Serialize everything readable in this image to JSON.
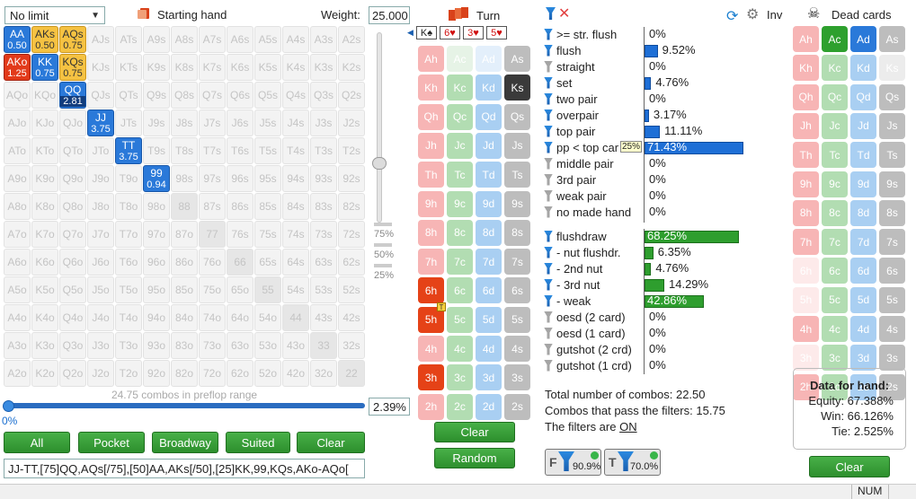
{
  "top": {
    "limit": "No limit",
    "starting_hand": "Starting hand",
    "weight_label": "Weight:",
    "weight_value": "25.000"
  },
  "matrix": [
    [
      [
        "AA",
        "0.50",
        "b"
      ],
      [
        "AKs",
        "0.50",
        "y"
      ],
      [
        "AQs",
        "0.75",
        "y"
      ],
      [
        "AJs",
        "",
        ""
      ],
      [
        "ATs",
        "",
        ""
      ],
      [
        "A9s",
        "",
        ""
      ],
      [
        "A8s",
        "",
        ""
      ],
      [
        "A7s",
        "",
        ""
      ],
      [
        "A6s",
        "",
        ""
      ],
      [
        "A5s",
        "",
        ""
      ],
      [
        "A4s",
        "",
        ""
      ],
      [
        "A3s",
        "",
        ""
      ],
      [
        "A2s",
        "",
        ""
      ]
    ],
    [
      [
        "AKo",
        "1.25",
        "r"
      ],
      [
        "KK",
        "0.75",
        "b"
      ],
      [
        "KQs",
        "0.75",
        "y"
      ],
      [
        "KJs",
        "",
        ""
      ],
      [
        "KTs",
        "",
        ""
      ],
      [
        "K9s",
        "",
        ""
      ],
      [
        "K8s",
        "",
        ""
      ],
      [
        "K7s",
        "",
        ""
      ],
      [
        "K6s",
        "",
        ""
      ],
      [
        "K5s",
        "",
        ""
      ],
      [
        "K4s",
        "",
        ""
      ],
      [
        "K3s",
        "",
        ""
      ],
      [
        "K2s",
        "",
        ""
      ]
    ],
    [
      [
        "AQo",
        "",
        ""
      ],
      [
        "KQo",
        "",
        ""
      ],
      [
        "QQ",
        "2.81",
        "b"
      ],
      [
        "QJs",
        "",
        ""
      ],
      [
        "QTs",
        "",
        ""
      ],
      [
        "Q9s",
        "",
        ""
      ],
      [
        "Q8s",
        "",
        ""
      ],
      [
        "Q7s",
        "",
        ""
      ],
      [
        "Q6s",
        "",
        ""
      ],
      [
        "Q5s",
        "",
        ""
      ],
      [
        "Q4s",
        "",
        ""
      ],
      [
        "Q3s",
        "",
        ""
      ],
      [
        "Q2s",
        "",
        ""
      ]
    ],
    [
      [
        "AJo",
        "",
        ""
      ],
      [
        "KJo",
        "",
        ""
      ],
      [
        "QJo",
        "",
        ""
      ],
      [
        "JJ",
        "3.75",
        "b"
      ],
      [
        "JTs",
        "",
        ""
      ],
      [
        "J9s",
        "",
        ""
      ],
      [
        "J8s",
        "",
        ""
      ],
      [
        "J7s",
        "",
        ""
      ],
      [
        "J6s",
        "",
        ""
      ],
      [
        "J5s",
        "",
        ""
      ],
      [
        "J4s",
        "",
        ""
      ],
      [
        "J3s",
        "",
        ""
      ],
      [
        "J2s",
        "",
        ""
      ]
    ],
    [
      [
        "ATo",
        "",
        ""
      ],
      [
        "KTo",
        "",
        ""
      ],
      [
        "QTo",
        "",
        ""
      ],
      [
        "JTo",
        "",
        ""
      ],
      [
        "TT",
        "3.75",
        "b"
      ],
      [
        "T9s",
        "",
        ""
      ],
      [
        "T8s",
        "",
        ""
      ],
      [
        "T7s",
        "",
        ""
      ],
      [
        "T6s",
        "",
        ""
      ],
      [
        "T5s",
        "",
        ""
      ],
      [
        "T4s",
        "",
        ""
      ],
      [
        "T3s",
        "",
        ""
      ],
      [
        "T2s",
        "",
        ""
      ]
    ],
    [
      [
        "A9o",
        "",
        ""
      ],
      [
        "K9o",
        "",
        ""
      ],
      [
        "Q9o",
        "",
        ""
      ],
      [
        "J9o",
        "",
        ""
      ],
      [
        "T9o",
        "",
        ""
      ],
      [
        "99",
        "0.94",
        "b"
      ],
      [
        "98s",
        "",
        ""
      ],
      [
        "97s",
        "",
        ""
      ],
      [
        "96s",
        "",
        ""
      ],
      [
        "95s",
        "",
        ""
      ],
      [
        "94s",
        "",
        ""
      ],
      [
        "93s",
        "",
        ""
      ],
      [
        "92s",
        "",
        ""
      ]
    ],
    [
      [
        "A8o",
        "",
        ""
      ],
      [
        "K8o",
        "",
        ""
      ],
      [
        "Q8o",
        "",
        ""
      ],
      [
        "J8o",
        "",
        ""
      ],
      [
        "T8o",
        "",
        ""
      ],
      [
        "98o",
        "",
        ""
      ],
      [
        "88",
        "",
        "p"
      ],
      [
        "87s",
        "",
        ""
      ],
      [
        "86s",
        "",
        ""
      ],
      [
        "85s",
        "",
        ""
      ],
      [
        "84s",
        "",
        ""
      ],
      [
        "83s",
        "",
        ""
      ],
      [
        "82s",
        "",
        ""
      ]
    ],
    [
      [
        "A7o",
        "",
        ""
      ],
      [
        "K7o",
        "",
        ""
      ],
      [
        "Q7o",
        "",
        ""
      ],
      [
        "J7o",
        "",
        ""
      ],
      [
        "T7o",
        "",
        ""
      ],
      [
        "97o",
        "",
        ""
      ],
      [
        "87o",
        "",
        ""
      ],
      [
        "77",
        "",
        "p"
      ],
      [
        "76s",
        "",
        ""
      ],
      [
        "75s",
        "",
        ""
      ],
      [
        "74s",
        "",
        ""
      ],
      [
        "73s",
        "",
        ""
      ],
      [
        "72s",
        "",
        ""
      ]
    ],
    [
      [
        "A6o",
        "",
        ""
      ],
      [
        "K6o",
        "",
        ""
      ],
      [
        "Q6o",
        "",
        ""
      ],
      [
        "J6o",
        "",
        ""
      ],
      [
        "T6o",
        "",
        ""
      ],
      [
        "96o",
        "",
        ""
      ],
      [
        "86o",
        "",
        ""
      ],
      [
        "76o",
        "",
        ""
      ],
      [
        "66",
        "",
        "p"
      ],
      [
        "65s",
        "",
        ""
      ],
      [
        "64s",
        "",
        ""
      ],
      [
        "63s",
        "",
        ""
      ],
      [
        "62s",
        "",
        ""
      ]
    ],
    [
      [
        "A5o",
        "",
        ""
      ],
      [
        "K5o",
        "",
        ""
      ],
      [
        "Q5o",
        "",
        ""
      ],
      [
        "J5o",
        "",
        ""
      ],
      [
        "T5o",
        "",
        ""
      ],
      [
        "95o",
        "",
        ""
      ],
      [
        "85o",
        "",
        ""
      ],
      [
        "75o",
        "",
        ""
      ],
      [
        "65o",
        "",
        ""
      ],
      [
        "55",
        "",
        "p"
      ],
      [
        "54s",
        "",
        ""
      ],
      [
        "53s",
        "",
        ""
      ],
      [
        "52s",
        "",
        ""
      ]
    ],
    [
      [
        "A4o",
        "",
        ""
      ],
      [
        "K4o",
        "",
        ""
      ],
      [
        "Q4o",
        "",
        ""
      ],
      [
        "J4o",
        "",
        ""
      ],
      [
        "T4o",
        "",
        ""
      ],
      [
        "94o",
        "",
        ""
      ],
      [
        "84o",
        "",
        ""
      ],
      [
        "74o",
        "",
        ""
      ],
      [
        "64o",
        "",
        ""
      ],
      [
        "54o",
        "",
        ""
      ],
      [
        "44",
        "",
        "p"
      ],
      [
        "43s",
        "",
        ""
      ],
      [
        "42s",
        "",
        ""
      ]
    ],
    [
      [
        "A3o",
        "",
        ""
      ],
      [
        "K3o",
        "",
        ""
      ],
      [
        "Q3o",
        "",
        ""
      ],
      [
        "J3o",
        "",
        ""
      ],
      [
        "T3o",
        "",
        ""
      ],
      [
        "93o",
        "",
        ""
      ],
      [
        "83o",
        "",
        ""
      ],
      [
        "73o",
        "",
        ""
      ],
      [
        "63o",
        "",
        ""
      ],
      [
        "53o",
        "",
        ""
      ],
      [
        "43o",
        "",
        ""
      ],
      [
        "33",
        "",
        "p"
      ],
      [
        "32s",
        "",
        ""
      ]
    ],
    [
      [
        "A2o",
        "",
        ""
      ],
      [
        "K2o",
        "",
        ""
      ],
      [
        "Q2o",
        "",
        ""
      ],
      [
        "J2o",
        "",
        ""
      ],
      [
        "T2o",
        "",
        ""
      ],
      [
        "92o",
        "",
        ""
      ],
      [
        "82o",
        "",
        ""
      ],
      [
        "72o",
        "",
        ""
      ],
      [
        "62o",
        "",
        ""
      ],
      [
        "52o",
        "",
        ""
      ],
      [
        "42o",
        "",
        ""
      ],
      [
        "32o",
        "",
        ""
      ],
      [
        "22",
        "",
        "p"
      ]
    ]
  ],
  "slider_marks": [
    "75%",
    "50%",
    "25%"
  ],
  "combos_text": "24.75 combos in preflop range",
  "left_pct": "0%",
  "pct_value": "2.39%",
  "buttons": [
    "All",
    "Pocket",
    "Broadway",
    "Suited",
    "Clear"
  ],
  "range_text": "JJ-TT,[75]QQ,AQs[/75],[50]AA,AKs[/50],[25]KK,99,KQs,AKo-AQo[",
  "board": {
    "turn_label": "Turn",
    "cards": [
      "K♠",
      "6♥",
      "3♥",
      "5♥"
    ],
    "suit_colors": {
      "s": "#222222",
      "h": "#d01010"
    }
  },
  "deck_rows": [
    [
      [
        "Ah",
        "hs"
      ],
      [
        "Ac",
        "cx"
      ],
      [
        "Ad",
        "dx"
      ],
      [
        "As",
        "ss"
      ]
    ],
    [
      [
        "Kh",
        "hs"
      ],
      [
        "Kc",
        "cs"
      ],
      [
        "Kd",
        "ds"
      ],
      [
        "Ks",
        "ka"
      ]
    ],
    [
      [
        "Qh",
        "hs"
      ],
      [
        "Qc",
        "cs"
      ],
      [
        "Qd",
        "ds"
      ],
      [
        "Qs",
        "ss"
      ]
    ],
    [
      [
        "Jh",
        "hs"
      ],
      [
        "Jc",
        "cs"
      ],
      [
        "Jd",
        "ds"
      ],
      [
        "Js",
        "ss"
      ]
    ],
    [
      [
        "Th",
        "hs"
      ],
      [
        "Tc",
        "cs"
      ],
      [
        "Td",
        "ds"
      ],
      [
        "Ts",
        "ss"
      ]
    ],
    [
      [
        "9h",
        "hs"
      ],
      [
        "9c",
        "cs"
      ],
      [
        "9d",
        "ds"
      ],
      [
        "9s",
        "ss"
      ]
    ],
    [
      [
        "8h",
        "hs"
      ],
      [
        "8c",
        "cs"
      ],
      [
        "8d",
        "ds"
      ],
      [
        "8s",
        "ss"
      ]
    ],
    [
      [
        "7h",
        "hs"
      ],
      [
        "7c",
        "cs"
      ],
      [
        "7d",
        "ds"
      ],
      [
        "7s",
        "ss"
      ]
    ],
    [
      [
        "6h",
        "ra"
      ],
      [
        "6c",
        "cs"
      ],
      [
        "6d",
        "ds"
      ],
      [
        "6s",
        "ss"
      ]
    ],
    [
      [
        "5h",
        "ra"
      ],
      [
        "5c",
        "cs"
      ],
      [
        "5d",
        "ds"
      ],
      [
        "5s",
        "ss"
      ]
    ],
    [
      [
        "4h",
        "hs"
      ],
      [
        "4c",
        "cs"
      ],
      [
        "4d",
        "ds"
      ],
      [
        "4s",
        "ss"
      ]
    ],
    [
      [
        "3h",
        "ra"
      ],
      [
        "3c",
        "cs"
      ],
      [
        "3d",
        "ds"
      ],
      [
        "3s",
        "ss"
      ]
    ],
    [
      [
        "2h",
        "hs"
      ],
      [
        "2c",
        "cs"
      ],
      [
        "2d",
        "ds"
      ],
      [
        "2s",
        "ss"
      ]
    ]
  ],
  "deck_buttons": [
    "Clear",
    "Random"
  ],
  "stats": [
    {
      "label": ">= str. flush",
      "pct": "0%",
      "value": 0,
      "color": "",
      "filter": "blue"
    },
    {
      "label": "flush",
      "pct": "9.52%",
      "value": 9.52,
      "color": "#1e6fd6",
      "filter": "blue"
    },
    {
      "label": "straight",
      "pct": "0%",
      "value": 0,
      "color": "",
      "filter": "gray"
    },
    {
      "label": "set",
      "pct": "4.76%",
      "value": 4.76,
      "color": "#1e6fd6",
      "filter": "blue"
    },
    {
      "label": "two pair",
      "pct": "0%",
      "value": 0,
      "color": "",
      "filter": "blue"
    },
    {
      "label": "overpair",
      "pct": "3.17%",
      "value": 3.17,
      "color": "#1e6fd6",
      "filter": "blue"
    },
    {
      "label": "top pair",
      "pct": "11.11%",
      "value": 11.11,
      "color": "#1e6fd6",
      "filter": "blue"
    },
    {
      "label": "pp < top car",
      "pct": "71.43%",
      "value": 71.43,
      "color": "#1e6fd6",
      "filter": "blue",
      "tag": "25%"
    },
    {
      "label": "middle pair",
      "pct": "0%",
      "value": 0,
      "color": "",
      "filter": "gray"
    },
    {
      "label": "3rd pair",
      "pct": "0%",
      "value": 0,
      "color": "",
      "filter": "gray"
    },
    {
      "label": "weak pair",
      "pct": "0%",
      "value": 0,
      "color": "",
      "filter": "gray"
    },
    {
      "label": "no made hand",
      "pct": "0%",
      "value": 0,
      "color": "",
      "filter": "gray"
    }
  ],
  "draws": [
    {
      "label": "flushdraw",
      "pct": "68.25%",
      "value": 68.25,
      "color": "#2e9e2e",
      "filter": "blue"
    },
    {
      "label": "- nut flushdr.",
      "pct": "6.35%",
      "value": 6.35,
      "color": "#2e9e2e",
      "filter": "blue"
    },
    {
      "label": "- 2nd nut",
      "pct": "4.76%",
      "value": 4.76,
      "color": "#2e9e2e",
      "filter": "blue"
    },
    {
      "label": "- 3rd nut",
      "pct": "14.29%",
      "value": 14.29,
      "color": "#2e9e2e",
      "filter": "blue"
    },
    {
      "label": "- weak",
      "pct": "42.86%",
      "value": 42.86,
      "color": "#2e9e2e",
      "filter": "blue"
    },
    {
      "label": "oesd (2 card)",
      "pct": "0%",
      "value": 0,
      "color": "",
      "filter": "gray"
    },
    {
      "label": "oesd (1 card)",
      "pct": "0%",
      "value": 0,
      "color": "",
      "filter": "gray"
    },
    {
      "label": "gutshot (2 crd)",
      "pct": "0%",
      "value": 0,
      "color": "",
      "filter": "gray"
    },
    {
      "label": "gutshot (1 crd)",
      "pct": "0%",
      "value": 0,
      "color": "",
      "filter": "gray"
    }
  ],
  "totals": {
    "total": "Total number of combos: 22.50",
    "pass": "Combos that pass the filters: 15.75",
    "filters_prefix": "The filters are ",
    "filters_state": "ON"
  },
  "filter_badges": {
    "f_pct": "90.9%",
    "t_pct": "70.0%"
  },
  "header_right": {
    "inv": "Inv",
    "dead_cards": "Dead cards"
  },
  "dead_rows": [
    [
      [
        "Ah",
        "hs"
      ],
      [
        "Ac",
        "ga"
      ],
      [
        "Ad",
        "ba"
      ],
      [
        "As",
        "ss"
      ]
    ],
    [
      [
        "Kh",
        "hs"
      ],
      [
        "Kc",
        "cs"
      ],
      [
        "Kd",
        "ds"
      ],
      [
        "Ks",
        "sx"
      ]
    ],
    [
      [
        "Qh",
        "hs"
      ],
      [
        "Qc",
        "cs"
      ],
      [
        "Qd",
        "ds"
      ],
      [
        "Qs",
        "ss"
      ]
    ],
    [
      [
        "Jh",
        "hs"
      ],
      [
        "Jc",
        "cs"
      ],
      [
        "Jd",
        "ds"
      ],
      [
        "Js",
        "ss"
      ]
    ],
    [
      [
        "Th",
        "hs"
      ],
      [
        "Tc",
        "cs"
      ],
      [
        "Td",
        "ds"
      ],
      [
        "Ts",
        "ss"
      ]
    ],
    [
      [
        "9h",
        "hs"
      ],
      [
        "9c",
        "cs"
      ],
      [
        "9d",
        "ds"
      ],
      [
        "9s",
        "ss"
      ]
    ],
    [
      [
        "8h",
        "hs"
      ],
      [
        "8c",
        "cs"
      ],
      [
        "8d",
        "ds"
      ],
      [
        "8s",
        "ss"
      ]
    ],
    [
      [
        "7h",
        "hs"
      ],
      [
        "7c",
        "cs"
      ],
      [
        "7d",
        "ds"
      ],
      [
        "7s",
        "ss"
      ]
    ],
    [
      [
        "6h",
        "hx"
      ],
      [
        "6c",
        "cs"
      ],
      [
        "6d",
        "ds"
      ],
      [
        "6s",
        "ss"
      ]
    ],
    [
      [
        "5h",
        "hx"
      ],
      [
        "5c",
        "cs"
      ],
      [
        "5d",
        "ds"
      ],
      [
        "5s",
        "ss"
      ]
    ],
    [
      [
        "4h",
        "hs"
      ],
      [
        "4c",
        "cs"
      ],
      [
        "4d",
        "ds"
      ],
      [
        "4s",
        "ss"
      ]
    ],
    [
      [
        "3h",
        "hx"
      ],
      [
        "3c",
        "cs"
      ],
      [
        "3d",
        "ds"
      ],
      [
        "3s",
        "ss"
      ]
    ],
    [
      [
        "2h",
        "hs"
      ],
      [
        "2c",
        "cs"
      ],
      [
        "2d",
        "ds"
      ],
      [
        "2s",
        "ss"
      ]
    ]
  ],
  "hand_data": {
    "title": "Data for hand:",
    "equity": "Equity: 67.388%",
    "win": "Win: 66.126%",
    "tie": "Tie: 2.525%"
  },
  "dead_clear": "Clear",
  "status": "NUM"
}
